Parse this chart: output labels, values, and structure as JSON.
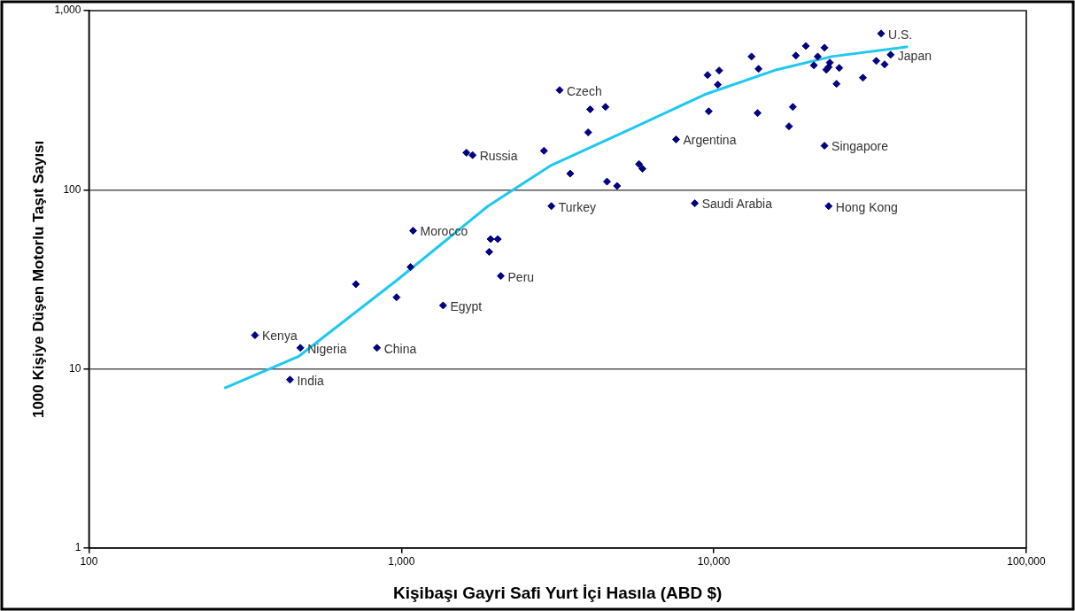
{
  "chart_data": {
    "type": "scatter",
    "xlabel": "Kişibaşı Gayri Safi Yurt İçi Hasıla (ABD $)",
    "ylabel": "1000 Kişiye Düşen Motorlu Taşıt Sayısı",
    "log": "xy",
    "grid": "y",
    "legend": false,
    "marker": "diamond",
    "xlim": [
      100,
      100000
    ],
    "xticks": [
      100,
      {
        "value": 1000,
        "label": "1,000"
      },
      {
        "value": 10000,
        "label": "10,000"
      },
      {
        "value": 100000,
        "label": "100,000"
      }
    ],
    "ylim": [
      1,
      1000
    ],
    "yticks": [
      1,
      10,
      100,
      {
        "value": 1000,
        "label": "1,000"
      }
    ],
    "series": [
      {
        "color": "#000080",
        "x": [
          340,
          475,
          440,
          835,
          715,
          965,
          1090,
          1070,
          1360,
          2080,
          1910,
          1930,
          2035,
          3020,
          1615,
          1690,
          2860,
          3470,
          3210,
          4020,
          4500,
          3960,
          4550,
          4900,
          5760,
          5910,
          7570,
          8690,
          9550,
          10400,
          10300,
          9630,
          13200,
          13900,
          13800,
          18300,
          19700,
          17900,
          17400,
          22600,
          23300,
          21500,
          22600,
          20900,
          23500,
          22900,
          23300,
          25200,
          24700,
          30000,
          34300,
          36800,
          33100,
          35200
        ],
        "values": [
          15.4,
          13.1,
          8.7,
          13.1,
          29.7,
          25.1,
          59,
          37,
          22.6,
          33,
          45,
          53,
          53,
          81,
          161,
          156,
          165,
          123,
          360,
          281,
          290,
          209,
          111,
          105,
          139,
          131,
          191,
          84,
          437,
          463,
          386,
          274,
          554,
          473,
          268,
          561,
          635,
          290,
          226,
          176,
          81,
          554,
          621,
          495,
          513,
          468,
          484,
          479,
          390,
          422,
          745,
          567,
          524,
          501
        ]
      },
      {
        "type": "line",
        "color": "#1ec8f0",
        "marker": "none",
        "line_style": "solid",
        "x": [
          271,
          468,
          973,
          1893,
          3020,
          5500,
          9350,
          15900,
          23800,
          41800
        ],
        "values": [
          7.8,
          11.7,
          31.5,
          81,
          137,
          221,
          340,
          468,
          554,
          629
        ]
      }
    ],
    "annotations": [
      {
        "text": "Kenya",
        "x": 340,
        "y": 15.4
      },
      {
        "text": "Nigeria",
        "x": 475,
        "y": 13.1
      },
      {
        "text": "India",
        "x": 440,
        "y": 8.7
      },
      {
        "text": "China",
        "x": 835,
        "y": 13.1
      },
      {
        "text": "Morocco",
        "x": 1090,
        "y": 59
      },
      {
        "text": "Egypt",
        "x": 1360,
        "y": 22.6
      },
      {
        "text": "Peru",
        "x": 2080,
        "y": 33
      },
      {
        "text": "Turkey",
        "x": 3020,
        "y": 81
      },
      {
        "text": "Russia",
        "x": 1690,
        "y": 156
      },
      {
        "text": "Czech",
        "x": 3210,
        "y": 360
      },
      {
        "text": "Argentina",
        "x": 7570,
        "y": 191
      },
      {
        "text": "Saudi Arabia",
        "x": 8690,
        "y": 84
      },
      {
        "text": "Singapore",
        "x": 22600,
        "y": 176
      },
      {
        "text": "Hong Kong",
        "x": 23300,
        "y": 81
      },
      {
        "text": "U.S.",
        "x": 34300,
        "y": 745
      },
      {
        "text": "Japan",
        "x": 36800,
        "y": 567
      }
    ]
  }
}
